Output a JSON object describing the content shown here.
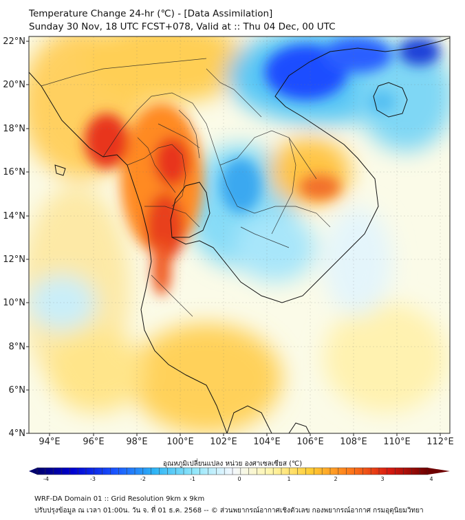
{
  "title": {
    "line1": "Temperature Change 24-hr (℃) - [Data Assimilation]",
    "line2": "Sunday 30 Nov, 18 UTC FCST+078, Valid at :: Thu 04 Dec, 00 UTC"
  },
  "map": {
    "lat_labels": [
      "22°N",
      "20°N",
      "18°N",
      "16°N",
      "14°N",
      "12°N",
      "10°N",
      "8°N",
      "6°N",
      "4°N"
    ],
    "lon_labels": [
      "94°E",
      "96°E",
      "98°E",
      "100°E",
      "102°E",
      "104°E",
      "106°E",
      "108°E",
      "110°E",
      "112°E"
    ],
    "lat_range": [
      4,
      22.2
    ],
    "lon_range": [
      93,
      112.5
    ]
  },
  "colorbar": {
    "title": "อุณหภูมิเปลี่ยนแปลง หน่วย องศาเซลเซียส (℃)",
    "ticks": [
      "-4",
      "-3",
      "-2",
      "-1",
      "0",
      "1",
      "2",
      "3",
      "4"
    ],
    "min": -4,
    "max": 4
  },
  "footer": {
    "line1": "WRF-DA Domain 01 :: Grid Resolution 9km x 9km",
    "line2": "ปรับปรุงข้อมูล ณ เวลา 01:00น. วัน จ. ที่ 01 ธ.ค. 2568 -- © ส่วนพยากรณ์อากาศเชิงตัวเลข กองพยากรณ์อากาศ กรมอุตุนิยมวิทยา"
  }
}
